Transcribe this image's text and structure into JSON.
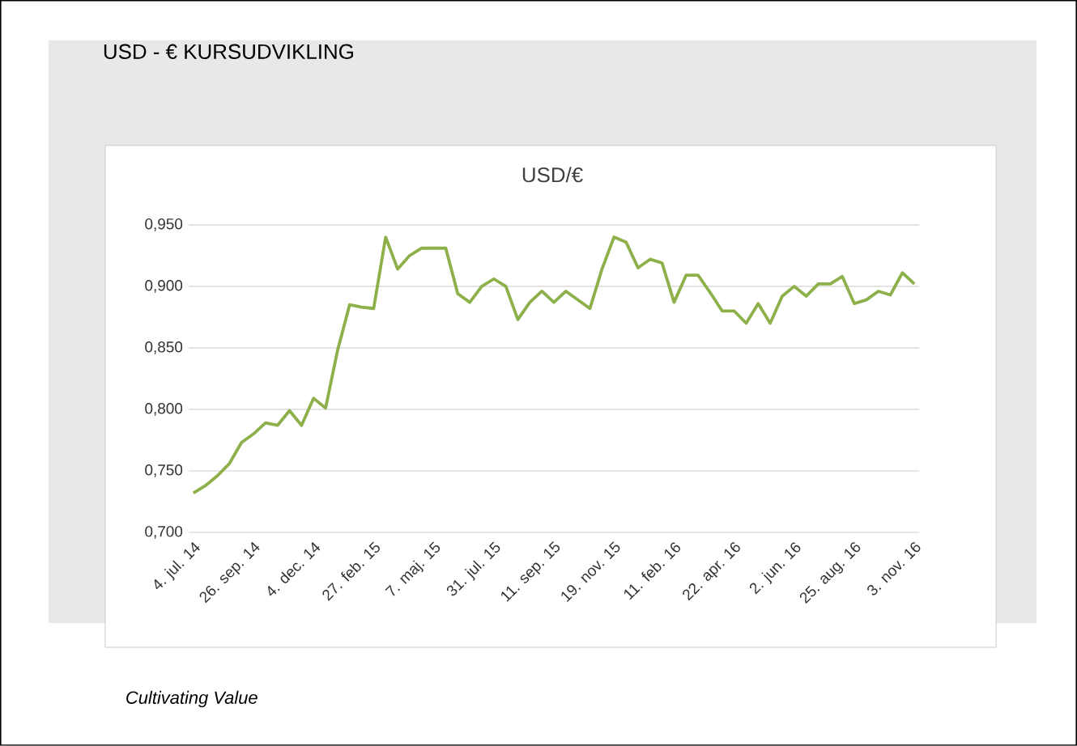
{
  "chart_data": {
    "type": "line",
    "title": "USD - € KURSUDVIKLING",
    "subtitle": "USD/€",
    "categories": [
      "4. jul. 14",
      null,
      null,
      null,
      null,
      "26. sep. 14",
      null,
      null,
      null,
      null,
      "4. dec. 14",
      null,
      null,
      null,
      null,
      "27. feb. 15",
      null,
      null,
      null,
      null,
      "7. maj. 15",
      null,
      null,
      null,
      null,
      "31. jul. 15",
      null,
      null,
      null,
      null,
      "11. sep. 15",
      null,
      null,
      null,
      null,
      "19. nov. 15",
      null,
      null,
      null,
      null,
      "11. feb. 16",
      null,
      null,
      null,
      null,
      "22. apr. 16",
      null,
      null,
      null,
      null,
      "2. jun. 16",
      null,
      null,
      null,
      null,
      "25. aug. 16",
      null,
      null,
      null,
      null,
      "3. nov. 16"
    ],
    "series": [
      {
        "color": "#8db04a",
        "values": [
          0.732,
          0.738,
          0.746,
          0.756,
          0.773,
          0.78,
          0.789,
          0.787,
          0.799,
          0.787,
          0.809,
          0.801,
          0.848,
          0.885,
          0.883,
          0.882,
          0.94,
          0.914,
          0.925,
          0.931,
          0.931,
          0.931,
          0.894,
          0.887,
          0.9,
          0.906,
          0.9,
          0.873,
          0.887,
          0.896,
          0.887,
          0.896,
          0.889,
          0.882,
          0.914,
          0.94,
          0.936,
          0.915,
          0.922,
          0.919,
          0.887,
          0.909,
          0.909,
          0.895,
          0.88,
          0.88,
          0.87,
          0.886,
          0.87,
          0.892,
          0.9,
          0.892,
          0.902,
          0.902,
          0.908,
          0.886,
          0.889,
          0.896,
          0.893,
          0.911,
          0.902
        ]
      }
    ],
    "ylim": [
      0.7,
      0.95
    ],
    "yticks": [
      {
        "value": 0.7,
        "label": "0,700"
      },
      {
        "value": 0.75,
        "label": "0,750"
      },
      {
        "value": 0.8,
        "label": "0,800"
      },
      {
        "value": 0.85,
        "label": "0,850"
      },
      {
        "value": 0.9,
        "label": "0,900"
      },
      {
        "value": 0.95,
        "label": "0,950"
      }
    ],
    "grid": "y",
    "marker": "none",
    "line_style": "solid",
    "annotations": [
      "Cultivating Value"
    ]
  }
}
